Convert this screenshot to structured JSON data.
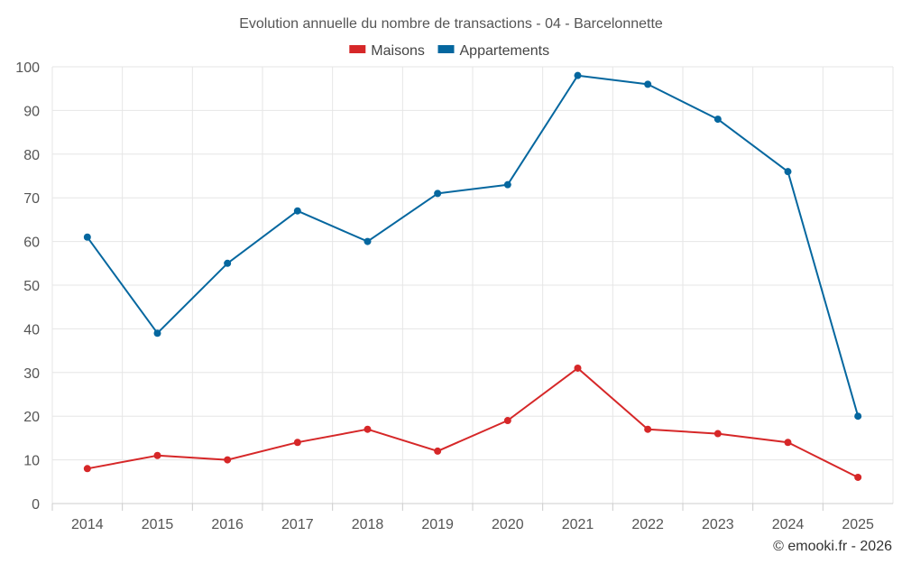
{
  "chart_data": {
    "type": "line",
    "title": "Evolution annuelle du nombre de transactions - 04 - Barcelonnette",
    "xlabel": "",
    "ylabel": "",
    "ylim": [
      0,
      100
    ],
    "yticks": [
      "0",
      "10",
      "20",
      "30",
      "40",
      "50",
      "60",
      "70",
      "80",
      "90",
      "100"
    ],
    "categories": [
      "2014",
      "2015",
      "2016",
      "2017",
      "2018",
      "2019",
      "2020",
      "2021",
      "2022",
      "2023",
      "2024",
      "2025"
    ],
    "legend_position": "top-center",
    "grid": true,
    "series": [
      {
        "name": "Maisons",
        "color": "#d62728",
        "values": [
          8,
          11,
          10,
          14,
          17,
          12,
          19,
          31,
          17,
          16,
          14,
          6
        ]
      },
      {
        "name": "Appartements",
        "color": "#05679f",
        "values": [
          61,
          39,
          55,
          67,
          60,
          71,
          73,
          98,
          96,
          88,
          76,
          20
        ]
      }
    ]
  },
  "credit": "© emooki.fr - 2026"
}
